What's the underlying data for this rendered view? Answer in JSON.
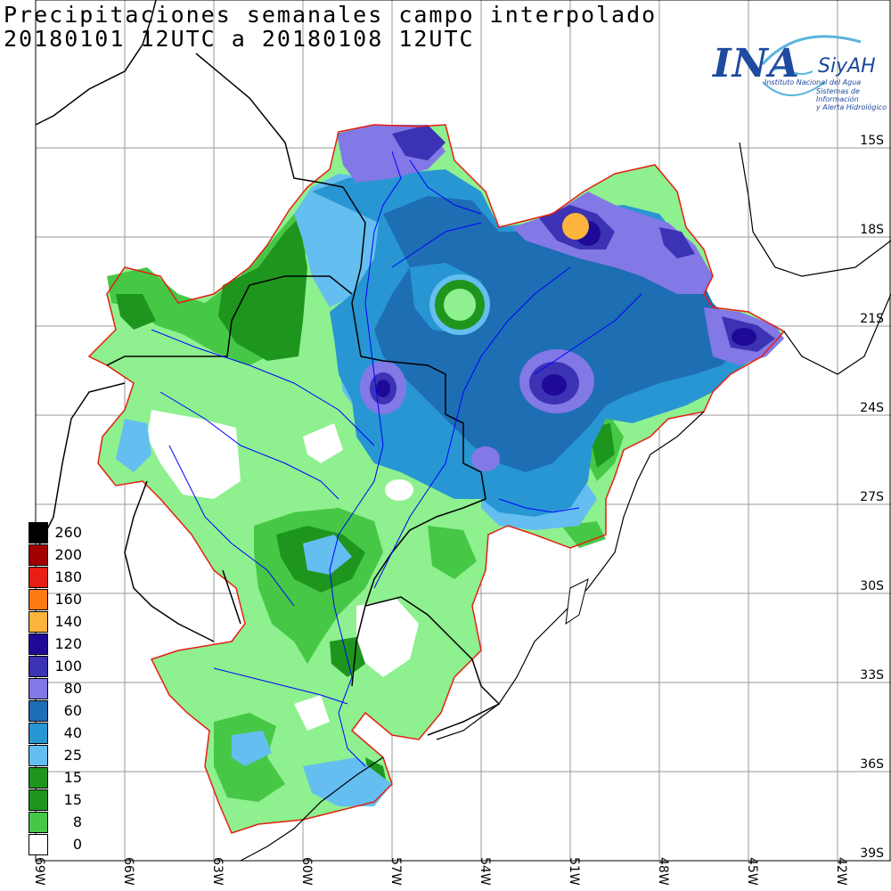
{
  "title": {
    "line1": "Precipitaciones semanales campo interpolado",
    "line2": "20180101 12UTC a 20180108 12UTC"
  },
  "logo": {
    "brand": "INA",
    "system": "SiyAH",
    "institute": "Instituto Nacional del Agua",
    "system_full_1": "Sistemas de Información",
    "system_full_2": "y Alerta Hidrológico"
  },
  "lat_labels": [
    "15S",
    "18S",
    "21S",
    "24S",
    "27S",
    "30S",
    "33S",
    "36S",
    "39S"
  ],
  "lon_labels": [
    "69W",
    "66W",
    "63W",
    "60W",
    "57W",
    "54W",
    "51W",
    "48W",
    "45W",
    "42W"
  ],
  "legend": [
    {
      "label": "260",
      "color": "#000000"
    },
    {
      "label": "200",
      "color": "#a00000"
    },
    {
      "label": "180",
      "color": "#e61e14"
    },
    {
      "label": "160",
      "color": "#ff7a14"
    },
    {
      "label": "140",
      "color": "#fcb43c"
    },
    {
      "label": "120",
      "color": "#1e0a96"
    },
    {
      "label": "100",
      "color": "#3c32b4"
    },
    {
      "label": "80",
      "color": "#8278e6"
    },
    {
      "label": "60",
      "color": "#1e6eb4"
    },
    {
      "label": "40",
      "color": "#2896d2"
    },
    {
      "label": "25",
      "color": "#64bef0"
    },
    {
      "label": "15",
      "color": "#1e961e"
    },
    {
      "label": "15",
      "color": "#1e961e"
    },
    {
      "label": "8",
      "color": "#46c846"
    },
    {
      "label": "0",
      "color": "#ffffff"
    }
  ]
}
